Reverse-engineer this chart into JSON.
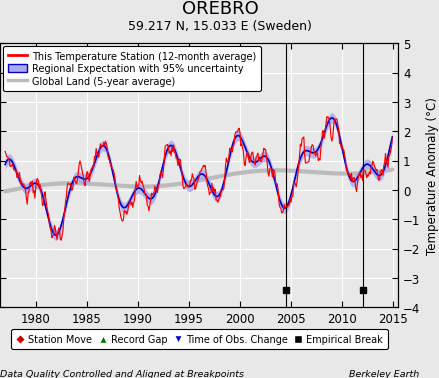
{
  "title": "OREBRO",
  "subtitle": "59.217 N, 15.033 E (Sweden)",
  "ylabel": "Temperature Anomaly (°C)",
  "footer_left": "Data Quality Controlled and Aligned at Breakpoints",
  "footer_right": "Berkeley Earth",
  "xlim": [
    1976.5,
    2015.5
  ],
  "ylim": [
    -4,
    5
  ],
  "yticks": [
    -4,
    -3,
    -2,
    -1,
    0,
    1,
    2,
    3,
    4,
    5
  ],
  "xticks": [
    1980,
    1985,
    1990,
    1995,
    2000,
    2005,
    2010,
    2015
  ],
  "empirical_breaks": [
    2004.5,
    2012.0
  ],
  "bg_color": "#e8e8e8",
  "plot_bg_color": "#e8e8e8",
  "station_line_color": "#ff0000",
  "regional_line_color": "#0000cc",
  "regional_fill_color": "#aaaaee",
  "global_line_color": "#bbbbbb",
  "grid_color": "#ffffff",
  "legend_labels": [
    "This Temperature Station (12-month average)",
    "Regional Expectation with 95% uncertainty",
    "Global Land (5-year average)"
  ]
}
